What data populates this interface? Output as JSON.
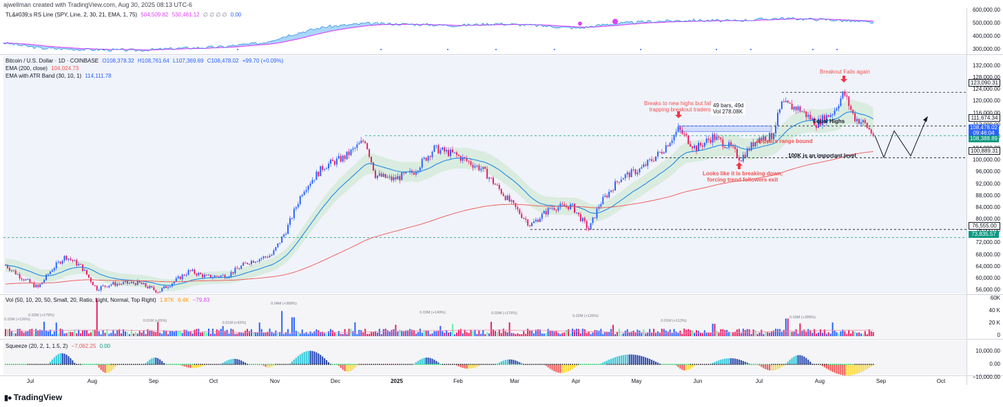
{
  "header": {
    "creator": "ajwellman created with TradingView.com, Aug 30, 2025 08:13 UTC-6"
  },
  "rs_pane": {
    "legend_name": "TL&#039;s RS Line (SPY, Line, 2, 30, 21, EMA, 1, 75)",
    "legend_v1": "504,509.82",
    "legend_v2": "530,481.12",
    "legend_extra": "∅ ∅ ∅ ∅",
    "legend_v3": "0.00",
    "axis": [
      "600,000.00",
      "500,000.00",
      "400,000.00",
      "300,000.00"
    ]
  },
  "main_pane": {
    "symbol": "Bitcoin / U.S. Dollar · 1D · COINBASE",
    "ohlc": {
      "o": "O108,378.32",
      "h": "H108,761.64",
      "l": "L107,369.69",
      "c": "C108,478.02",
      "chg": "+99.70 (+0.09%)"
    },
    "ema_label": "EMA (200, close)",
    "ema_value": "104,024.73",
    "atr_label": "EMA with ATR Band (30, 10, 1)",
    "atr_value": "114,111.78",
    "axis": [
      "132,000.00",
      "128,000.00",
      "124,000.00",
      "120,000.00",
      "116,000.00",
      "112,000.00",
      "108,000.00",
      "104,000.00",
      "100,000.00",
      "96,000.00",
      "92,000.00",
      "88,000.00",
      "84,000.00",
      "80,000.00",
      "76,000.00",
      "72,000.00",
      "68,000.00",
      "64,000.00",
      "60,000.00",
      "56,000.00"
    ],
    "tags": {
      "t1": "123,090.31",
      "t2": "111,674.34",
      "t3a": "108,478.02",
      "t3b": "09:46:04",
      "t4": "108,388.89",
      "t5": "100,889.31",
      "t6": "76,555.00",
      "t7": "73,835.57"
    },
    "annotations": {
      "breakout_fails": "Breakout Fails again",
      "breaks_new_highs_1": "Breaks to new highs but fails,",
      "breaks_new_highs_2": "trapping breakout traders",
      "bars_1": "49 bars, 49d",
      "bars_2": "Vol 278.08K",
      "equal_highs": "Equal Highs",
      "range_bound": "Appears range bound",
      "important_level": "100K is an important level",
      "breaking_down_1": "Looks like it is breaking down,",
      "breaking_down_2": "forcing trend followers exit"
    }
  },
  "vol_pane": {
    "legend": "Vol (50, 10, 20, 50, Small, 20, Ratio, Light, Normal, Top Right)",
    "v1": "1.87K",
    "v2": "6.4K",
    "v3": "−79.83",
    "axis": [
      "60K",
      "40 K",
      "20 K",
      "0"
    ],
    "labels": [
      "0.02M (+126%)",
      "0.02M (+179%)",
      "0.01M (+65%)",
      "0.01M (+93%)",
      "0.04M (+368%)",
      "0.03M (+149%)",
      "0.03M (+176%)",
      "0.02M (+126%)",
      "0.01M (+113%)",
      "0.03M (+289%)"
    ]
  },
  "squeeze_pane": {
    "legend": "Squeeze (20, 2, 1, 1.5, 2)",
    "v1": "−7,062.25",
    "v2": "0.00",
    "axis": [
      "10,000.00",
      "0.00",
      "−10,000.00"
    ]
  },
  "time_axis": [
    "Jul",
    "Aug",
    "Sep",
    "Oct",
    "Nov",
    "Dec",
    "2025",
    "Feb",
    "Mar",
    "Apr",
    "May",
    "Jun",
    "Jul",
    "Aug",
    "Sep",
    "Oct"
  ],
  "brand": "TradingView",
  "colors": {
    "up": "#2962ff",
    "down": "#e91e63",
    "ema200": "#ef5350",
    "ema30": "#1e88e5",
    "band": "#c8e6c9",
    "rs": "#e040fb",
    "rs_fill": "#64b5f6"
  },
  "chart_data": [
    {
      "type": "line",
      "title": "Bitcoin / U.S. Dollar · 1D · COINBASE",
      "x": [
        "Jul",
        "Aug",
        "Sep",
        "Oct",
        "Nov",
        "Dec",
        "2025",
        "Feb",
        "Mar",
        "Apr",
        "May",
        "Jun",
        "Jul",
        "Aug",
        "Sep"
      ],
      "series": [
        {
          "name": "Bitcoin / U.S. Dollar · 1D · COINBASE",
          "values": [
            62000,
            59000,
            57000,
            63000,
            70000,
            97000,
            96000,
            100000,
            86000,
            78000,
            95000,
            106000,
            118000,
            115000,
            108478
          ]
        },
        {
          "name": "EMA (200, close)",
          "values": [
            61000,
            61000,
            60500,
            61000,
            64000,
            70000,
            77000,
            82000,
            84000,
            85000,
            87000,
            93000,
            99000,
            102000,
            104024
          ]
        },
        {
          "name": "EMA with ATR Band (30, 10, 1)",
          "values": [
            64000,
            60000,
            58000,
            61000,
            68000,
            92000,
            96000,
            100000,
            88000,
            82000,
            90000,
            104000,
            112000,
            117000,
            114111
          ]
        }
      ],
      "ylim": [
        56000,
        132000
      ],
      "levels": [
        123090.31,
        111674.34,
        108388.89,
        100889.31,
        76555.0,
        73835.57
      ]
    }
  ]
}
